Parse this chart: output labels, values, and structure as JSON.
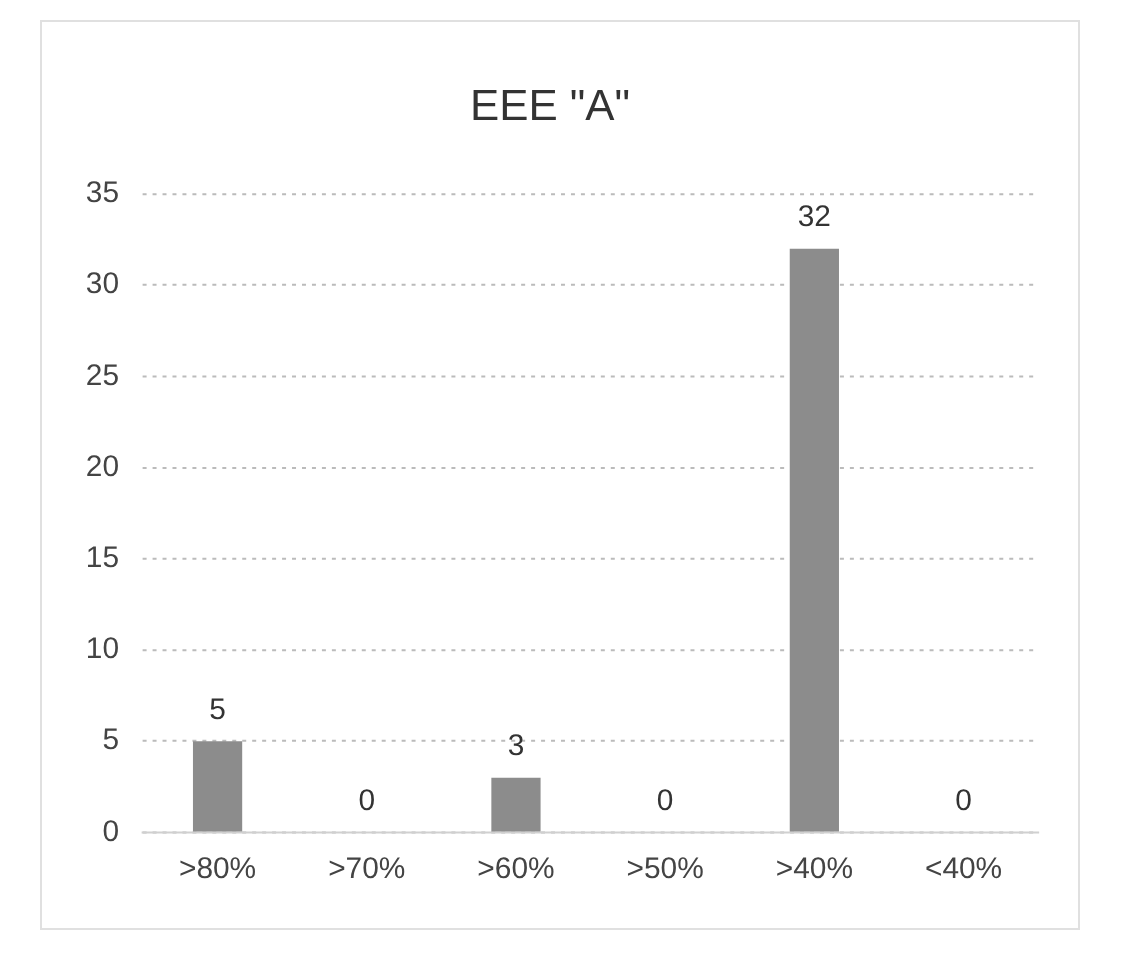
{
  "chart_data": {
    "type": "bar",
    "title": "EEE \"A\"",
    "categories": [
      ">80%",
      ">70%",
      ">60%",
      ">50%",
      ">40%",
      "<40%"
    ],
    "values": [
      5,
      0,
      3,
      0,
      32,
      0
    ],
    "color": "#8c8c8c",
    "ylim": [
      0,
      35
    ],
    "yticks": [
      0,
      5,
      10,
      15,
      20,
      25,
      30,
      35
    ],
    "grid": "y",
    "data_labels": true,
    "legend": false
  }
}
